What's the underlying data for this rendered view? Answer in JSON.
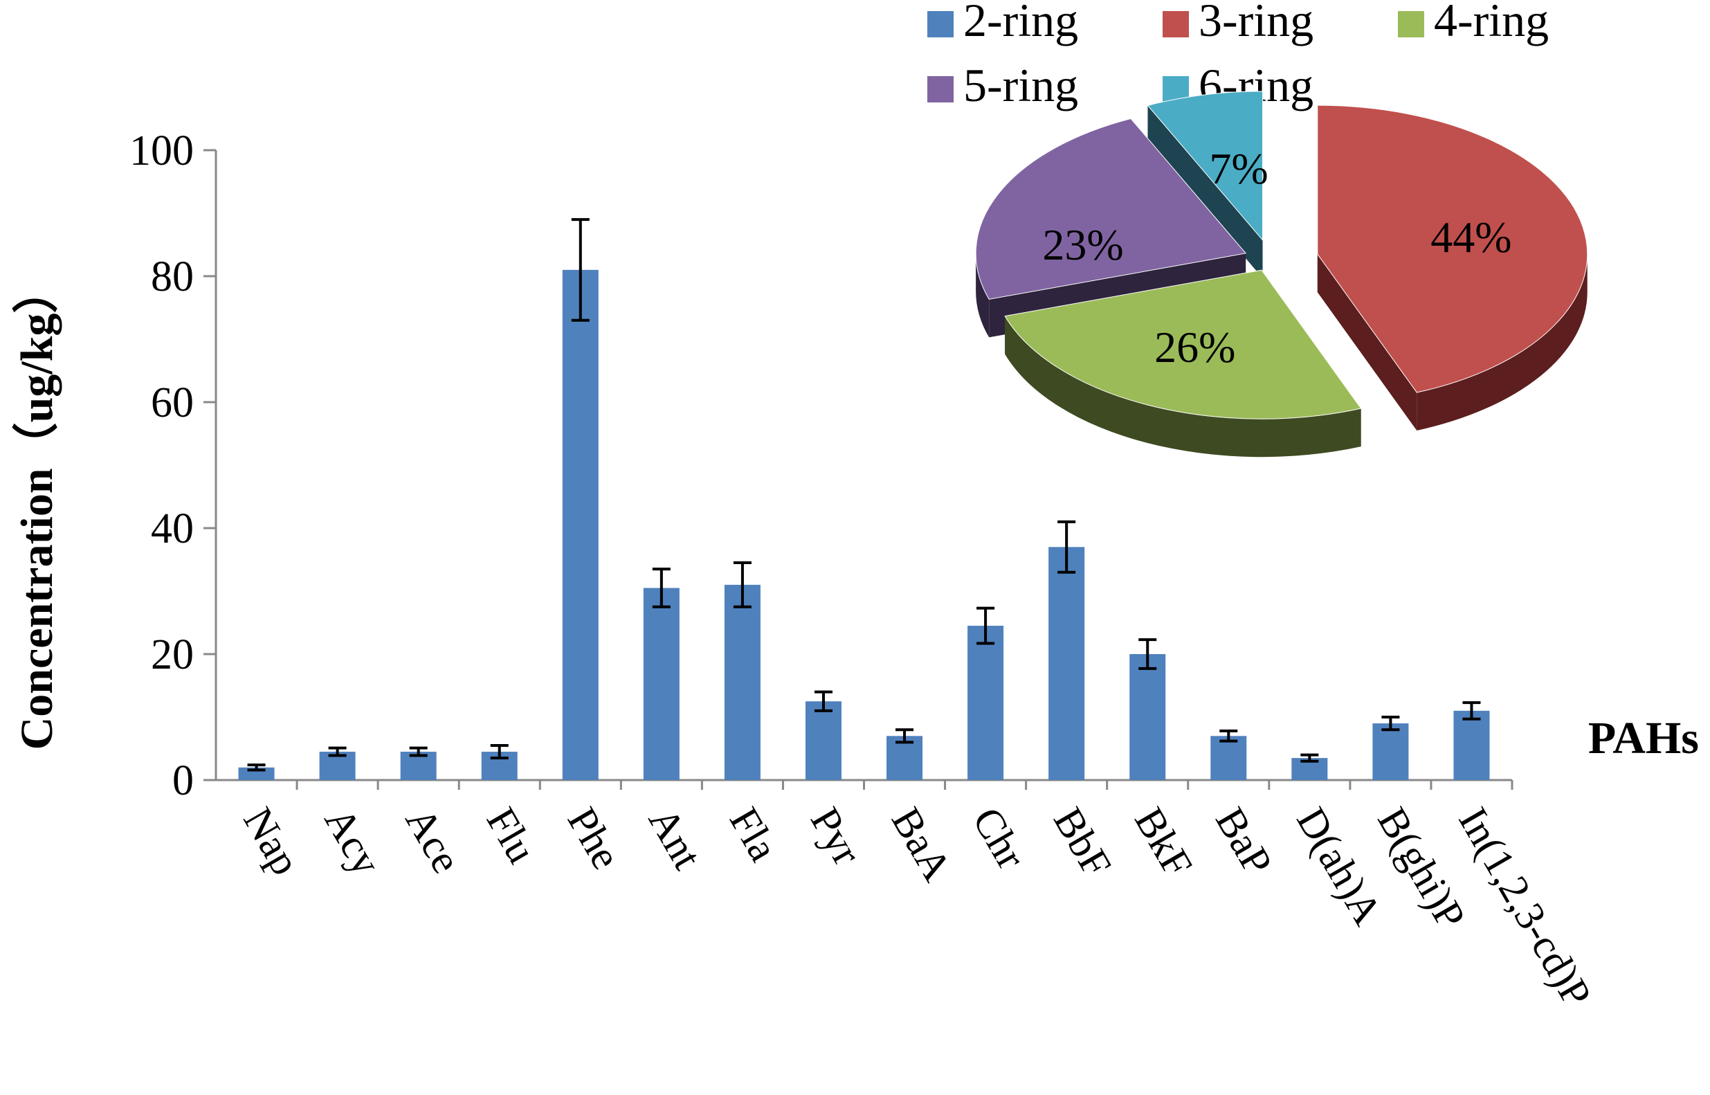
{
  "chart_data": [
    {
      "type": "bar",
      "title": "",
      "xlabel": "PAHs",
      "ylabel": "Concentration（ug/kg）",
      "ylim": [
        0,
        100
      ],
      "yticks": [
        0,
        20,
        40,
        60,
        80,
        100
      ],
      "grid": false,
      "categories": [
        "Nap",
        "Acy",
        "Ace",
        "Flu",
        "Phe",
        "Ant",
        "Fla",
        "Pyr",
        "BaA",
        "Chr",
        "BbF",
        "BkF",
        "BaP",
        "D(ah)A",
        "B(ghi)P",
        "In(1,2,3-cd)P"
      ],
      "values": [
        2,
        4.5,
        4.5,
        4.5,
        81,
        30.5,
        31,
        12.5,
        7,
        24.5,
        37,
        20,
        7,
        3.5,
        9,
        11
      ],
      "error": [
        0.4,
        0.6,
        0.6,
        1.0,
        8,
        3,
        3.5,
        1.5,
        1.0,
        2.8,
        4,
        2.3,
        0.8,
        0.5,
        1.0,
        1.3
      ],
      "colors": {
        "bar": "#4f81bd",
        "error_bar": "#000000"
      }
    },
    {
      "type": "pie",
      "style": "3d-exploded",
      "legend_position": "top",
      "labels": [
        "2-ring",
        "3-ring",
        "4-ring",
        "5-ring",
        "6-ring"
      ],
      "values": [
        0,
        44,
        26,
        23,
        7
      ],
      "value_labels": [
        "",
        "44%",
        "26%",
        "23%",
        "7%"
      ],
      "colors": [
        "#4f81bd",
        "#c0504d",
        "#9bbb59",
        "#8064a2",
        "#4bacc6"
      ],
      "side_colors": [
        "#263f5c",
        "#5c1e1e",
        "#3e4b22",
        "#2e243d",
        "#1d4450"
      ]
    }
  ]
}
